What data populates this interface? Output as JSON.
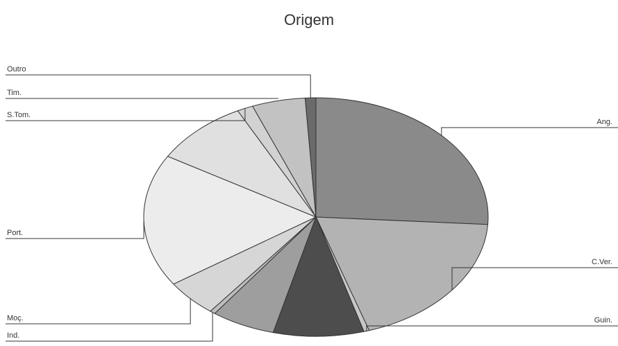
{
  "chart_data": {
    "type": "pie",
    "title": "Origem",
    "legend": "none",
    "slices": [
      {
        "label": "Ang.",
        "value": 26.0,
        "color": "#8a8a8a"
      },
      {
        "label": "C.Ver.",
        "value": 19.0,
        "color": "#b3b3b3"
      },
      {
        "label": "Guin.",
        "value": 0.5,
        "color": "#c8c8c8"
      },
      {
        "label": "",
        "value": 8.5,
        "color": "#4d4d4d"
      },
      {
        "label": "",
        "value": 6.0,
        "color": "#9e9e9e"
      },
      {
        "label": "Ind.",
        "value": 0.5,
        "color": "#bdbdbd"
      },
      {
        "label": "Moç.",
        "value": 5.0,
        "color": "#d6d6d6"
      },
      {
        "label": "Port.",
        "value": 18.0,
        "color": "#ececec"
      },
      {
        "label": "",
        "value": 9.0,
        "color": "#e0e0e0"
      },
      {
        "label": "S.Tom.",
        "value": 1.5,
        "color": "#d2d2d2"
      },
      {
        "label": "Tim.",
        "value": 5.0,
        "color": "#c2c2c2"
      },
      {
        "label": "Outro",
        "value": 1.0,
        "color": "#6a6a6a"
      }
    ]
  }
}
